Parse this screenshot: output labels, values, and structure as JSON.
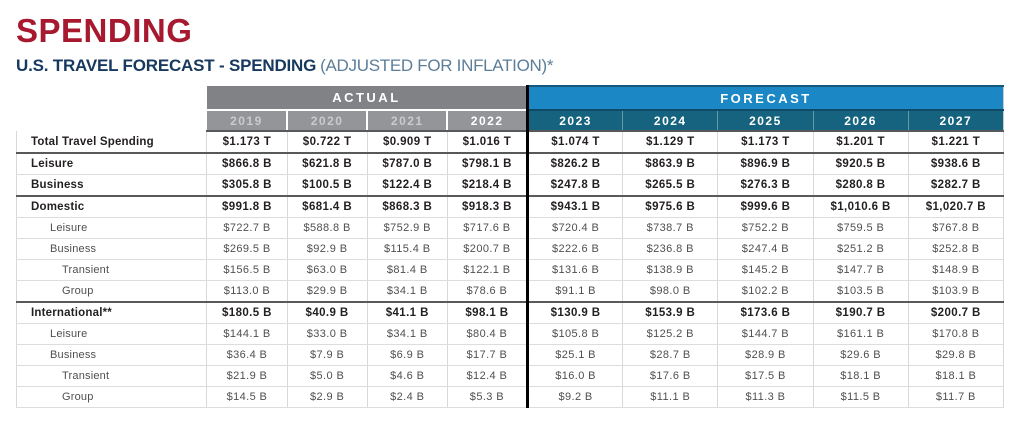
{
  "header": {
    "title": "SPENDING",
    "subtitle": "U.S. TRAVEL FORECAST - SPENDING",
    "subtitle_note": "(ADJUSTED FOR INFLATION)*"
  },
  "colors": {
    "title_red": "#A6192E",
    "subtitle_navy": "#17395F",
    "subtitle_note_blue": "#5C7E99",
    "actual_band_gray": "#808285",
    "actual_year_gray": "#939598",
    "actual_year_text": "#C9CBCD",
    "forecast_band_blue": "#1B87C4",
    "forecast_year_teal": "#16637F",
    "section_border_dark": "#58595B",
    "row_border_light": "#DCDDDE",
    "divider_black": "#000000"
  },
  "chart_data": {
    "type": "table",
    "title": "SPENDING",
    "subtitle": "U.S. TRAVEL FORECAST - SPENDING (ADJUSTED FOR INFLATION)*",
    "column_groups": [
      {
        "label": "ACTUAL",
        "years": [
          "2019",
          "2020",
          "2021",
          "2022"
        ]
      },
      {
        "label": "FORECAST",
        "years": [
          "2023",
          "2024",
          "2025",
          "2026",
          "2027"
        ]
      }
    ],
    "rows": [
      {
        "label": "Total Travel Spending",
        "emphasis": "bold",
        "indent": 0,
        "section_end": true,
        "values": [
          "$1.173 T",
          "$0.722 T",
          "$0.909 T",
          "$1.016 T",
          "$1.074 T",
          "$1.129 T",
          "$1.173 T",
          "$1.201 T",
          "$1.221 T"
        ]
      },
      {
        "label": "Leisure",
        "emphasis": "bold",
        "indent": 0,
        "section_end": false,
        "values": [
          "$866.8 B",
          "$621.8 B",
          "$787.0 B",
          "$798.1 B",
          "$826.2 B",
          "$863.9 B",
          "$896.9 B",
          "$920.5 B",
          "$938.6 B"
        ]
      },
      {
        "label": "Business",
        "emphasis": "bold",
        "indent": 0,
        "section_end": true,
        "values": [
          "$305.8 B",
          "$100.5 B",
          "$122.4 B",
          "$218.4 B",
          "$247.8 B",
          "$265.5 B",
          "$276.3 B",
          "$280.8 B",
          "$282.7 B"
        ]
      },
      {
        "label": "Domestic",
        "emphasis": "bold",
        "indent": 0,
        "section_end": false,
        "values": [
          "$991.8 B",
          "$681.4 B",
          "$868.3 B",
          "$918.3 B",
          "$943.1 B",
          "$975.6 B",
          "$999.6 B",
          "$1,010.6 B",
          "$1,020.7 B"
        ]
      },
      {
        "label": "Leisure",
        "emphasis": "regular",
        "indent": 1,
        "section_end": false,
        "values": [
          "$722.7 B",
          "$588.8 B",
          "$752.9 B",
          "$717.6 B",
          "$720.4 B",
          "$738.7 B",
          "$752.2 B",
          "$759.5 B",
          "$767.8 B"
        ]
      },
      {
        "label": "Business",
        "emphasis": "regular",
        "indent": 1,
        "section_end": false,
        "values": [
          "$269.5 B",
          "$92.9 B",
          "$115.4 B",
          "$200.7 B",
          "$222.6 B",
          "$236.8 B",
          "$247.4 B",
          "$251.2 B",
          "$252.8 B"
        ]
      },
      {
        "label": "Transient",
        "emphasis": "regular",
        "indent": 2,
        "section_end": false,
        "values": [
          "$156.5 B",
          "$63.0 B",
          "$81.4 B",
          "$122.1 B",
          "$131.6 B",
          "$138.9 B",
          "$145.2 B",
          "$147.7 B",
          "$148.9 B"
        ]
      },
      {
        "label": "Group",
        "emphasis": "regular",
        "indent": 2,
        "section_end": true,
        "values": [
          "$113.0 B",
          "$29.9 B",
          "$34.1 B",
          "$78.6 B",
          "$91.1 B",
          "$98.0 B",
          "$102.2 B",
          "$103.5 B",
          "$103.9 B"
        ]
      },
      {
        "label": "International**",
        "emphasis": "bold",
        "indent": 0,
        "section_end": false,
        "values": [
          "$180.5 B",
          "$40.9 B",
          "$41.1 B",
          "$98.1 B",
          "$130.9 B",
          "$153.9 B",
          "$173.6 B",
          "$190.7 B",
          "$200.7 B"
        ]
      },
      {
        "label": "Leisure",
        "emphasis": "regular",
        "indent": 1,
        "section_end": false,
        "values": [
          "$144.1 B",
          "$33.0 B",
          "$34.1 B",
          "$80.4 B",
          "$105.8 B",
          "$125.2 B",
          "$144.7 B",
          "$161.1 B",
          "$170.8 B"
        ]
      },
      {
        "label": "Business",
        "emphasis": "regular",
        "indent": 1,
        "section_end": false,
        "values": [
          "$36.4 B",
          "$7.9 B",
          "$6.9 B",
          "$17.7 B",
          "$25.1 B",
          "$28.7 B",
          "$28.9 B",
          "$29.6 B",
          "$29.8 B"
        ]
      },
      {
        "label": "Transient",
        "emphasis": "regular",
        "indent": 2,
        "section_end": false,
        "values": [
          "$21.9 B",
          "$5.0 B",
          "$4.6 B",
          "$12.4 B",
          "$16.0 B",
          "$17.6 B",
          "$17.5 B",
          "$18.1 B",
          "$18.1 B"
        ]
      },
      {
        "label": "Group",
        "emphasis": "regular",
        "indent": 2,
        "section_end": false,
        "values": [
          "$14.5 B",
          "$2.9 B",
          "$2.4 B",
          "$5.3 B",
          "$9.2 B",
          "$11.1 B",
          "$11.3 B",
          "$11.5 B",
          "$11.7 B"
        ]
      }
    ]
  }
}
